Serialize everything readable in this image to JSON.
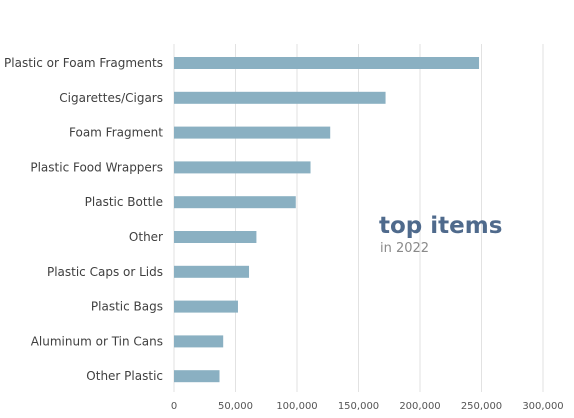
{
  "chart_data": {
    "type": "bar",
    "orientation": "horizontal",
    "categories": [
      "Plastic or Foam Fragments",
      "Cigarettes/Cigars",
      "Foam Fragment",
      "Plastic Food Wrappers",
      "Plastic Bottle",
      "Other",
      "Plastic Caps or Lids",
      "Plastic Bags",
      "Aluminum or Tin Cans",
      "Other Plastic"
    ],
    "values": [
      248000,
      172000,
      127000,
      111000,
      99000,
      67000,
      61000,
      52000,
      40000,
      37000
    ],
    "xlim": [
      0,
      300000
    ],
    "xticks": [
      0,
      50000,
      100000,
      150000,
      200000,
      250000,
      300000
    ],
    "xtick_labels": [
      "0",
      "50,000",
      "100,000",
      "150,000",
      "200,000",
      "250,000",
      "300,000"
    ],
    "grid": "vertical",
    "bar_color": "#8ab0c2",
    "annotation": {
      "title": "top items",
      "subtitle": "in 2022"
    }
  }
}
